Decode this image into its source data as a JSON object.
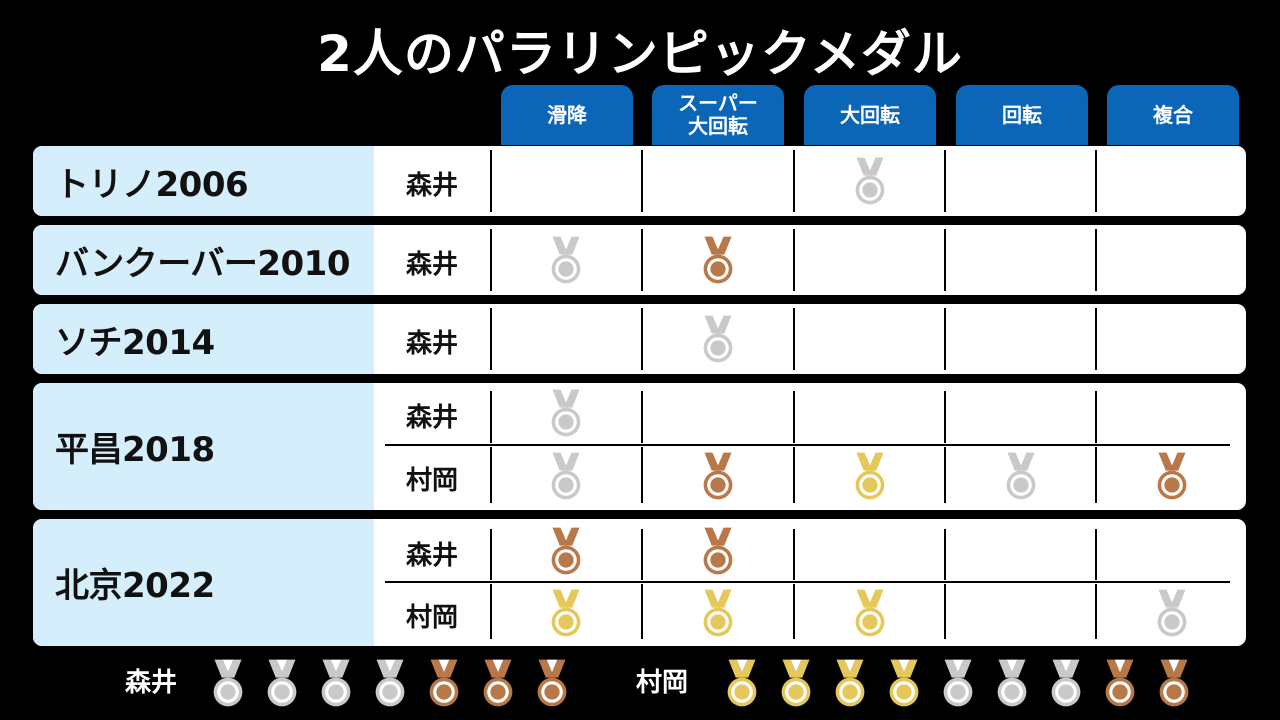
{
  "title": "2人のパラリンピックメダル",
  "columns": [
    "滑降",
    "スーパー\n大回転",
    "大回転",
    "回転",
    "複合"
  ],
  "medal_colors": {
    "gold": "#e6c85a",
    "silver": "#c9c9c9",
    "bronze": "#b8784a"
  },
  "games": [
    {
      "label": "トリノ2006",
      "rows": [
        {
          "athlete": "森井",
          "medals": [
            null,
            null,
            "silver",
            null,
            null
          ]
        }
      ]
    },
    {
      "label": "バンクーバー2010",
      "rows": [
        {
          "athlete": "森井",
          "medals": [
            "silver",
            "bronze",
            null,
            null,
            null
          ]
        }
      ]
    },
    {
      "label": "ソチ2014",
      "rows": [
        {
          "athlete": "森井",
          "medals": [
            null,
            "silver",
            null,
            null,
            null
          ]
        }
      ]
    },
    {
      "label": "平昌2018",
      "rows": [
        {
          "athlete": "森井",
          "medals": [
            "silver",
            null,
            null,
            null,
            null
          ]
        },
        {
          "athlete": "村岡",
          "medals": [
            "silver",
            "bronze",
            "gold",
            "silver",
            "bronze"
          ]
        }
      ]
    },
    {
      "label": "北京2022",
      "rows": [
        {
          "athlete": "森井",
          "medals": [
            "bronze",
            "bronze",
            null,
            null,
            null
          ]
        },
        {
          "athlete": "村岡",
          "medals": [
            "gold",
            "gold",
            "gold",
            null,
            "silver"
          ]
        }
      ]
    }
  ],
  "totals": [
    {
      "athlete": "森井",
      "medals": [
        "silver",
        "silver",
        "silver",
        "silver",
        "bronze",
        "bronze",
        "bronze"
      ]
    },
    {
      "athlete": "村岡",
      "medals": [
        "gold",
        "gold",
        "gold",
        "gold",
        "silver",
        "silver",
        "silver",
        "bronze",
        "bronze"
      ]
    }
  ]
}
